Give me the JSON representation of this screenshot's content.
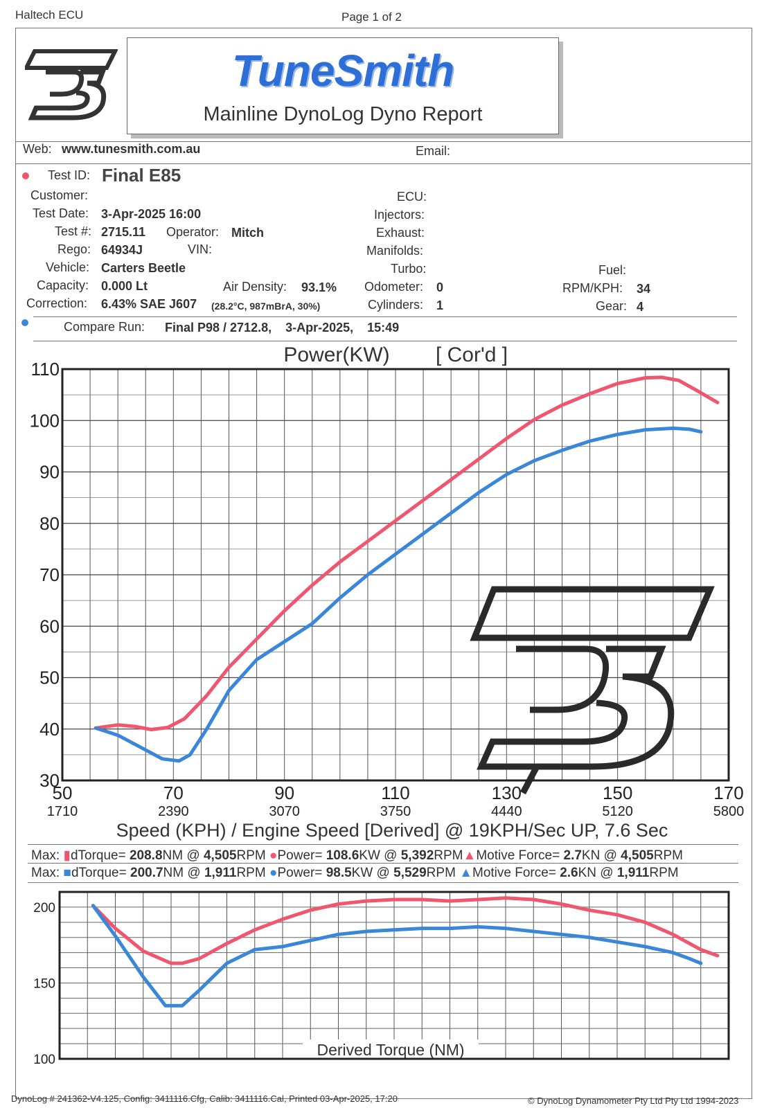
{
  "page": {
    "header_left": "Haltech ECU",
    "header_center": "Page 1 of 2"
  },
  "report": {
    "brand": "TuneSmith",
    "subtitle": "Mainline DynoLog Dyno Report",
    "web_label": "Web:",
    "web_value": "www.tunesmith.com.au",
    "email_label": "Email:",
    "test_id_label": "Test ID:",
    "test_id_value": "Final E85",
    "customer_label": "Customer:",
    "test_date_label": "Test Date:",
    "test_date_value": "3-Apr-2025 16:00",
    "test_num_label": "Test #:",
    "test_num_value": "2715.11",
    "operator_label": "Operator:",
    "operator_value": "Mitch",
    "rego_label": "Rego:",
    "rego_value": "64934J",
    "vin_label": "VIN:",
    "vehicle_label": "Vehicle:",
    "vehicle_value": "Carters Beetle",
    "capacity_label": "Capacity:",
    "capacity_value": "0.000 Lt",
    "air_density_label": "Air Density:",
    "air_density_value": "93.1%",
    "correction_label": "Correction:",
    "correction_value": "6.43% SAE J607",
    "correction_detail": "(28.2°C, 987mBrA, 30%)",
    "ecu_label": "ECU:",
    "injectors_label": "Injectors:",
    "exhaust_label": "Exhaust:",
    "manifolds_label": "Manifolds:",
    "turbo_label": "Turbo:",
    "odometer_label": "Odometer:",
    "odometer_value": "0",
    "cylinders_label": "Cylinders:",
    "cylinders_value": "1",
    "fuel_label": "Fuel:",
    "rpm_kph_label": "RPM/KPH:",
    "rpm_kph_value": "34",
    "gear_label": "Gear:",
    "gear_value": "4",
    "compare_label": "Compare Run:",
    "compare_value": "Final P98 / 2712.8,    3-Apr-2025,    15:49",
    "colors": {
      "test_run": "#f0566e",
      "compare_run": "#3a86d8"
    }
  },
  "max_lines": {
    "run1": {
      "prefix": "Max:",
      "torque_label": "dTorque=",
      "torque_value": "208.8",
      "torque_unit": "NM @ ",
      "torque_rpm": "4,505",
      "torque_rpm_unit": "RPM",
      "power_label": "Power=",
      "power_value": "108.6",
      "power_unit": "KW @ ",
      "power_rpm": "5,392",
      "power_rpm_unit": "RPM",
      "force_label": "Motive Force=",
      "force_value": "2.7",
      "force_unit": "KN @ ",
      "force_rpm": "4,505",
      "force_rpm_unit": "RPM"
    },
    "run2": {
      "prefix": "Max:",
      "torque_label": "dTorque=",
      "torque_value": "200.7",
      "torque_unit": "NM @ ",
      "torque_rpm": "1,911",
      "torque_rpm_unit": "RPM",
      "power_label": "Power=",
      "power_value": "98.5",
      "power_unit": "KW @ ",
      "power_rpm": "5,529",
      "power_rpm_unit": "RPM",
      "force_label": "Motive Force=",
      "force_value": "2.6",
      "force_unit": "KN @ ",
      "force_rpm": "1,911",
      "force_rpm_unit": "RPM"
    }
  },
  "footer": {
    "left": "DynoLog # 241362-V4.125, Config: 3411116.Cfg, Calib: 3411116.Cal, Printed 03-Apr-2025, 17:20",
    "right": "© DynoLog Dynamometer Pty Ltd Pty Ltd 1994-2023"
  },
  "chart_data": [
    {
      "type": "line",
      "title": "Power(KW)",
      "title_suffix": "[ Cor'd ]",
      "xlabel": "Speed (KPH) / Engine Speed [Derived] @ 19KPH/Sec UP, 7.6 Sec",
      "xlim": [
        50,
        170
      ],
      "ylim": [
        30,
        110
      ],
      "x_ticks": [
        {
          "v": 50,
          "label": "50",
          "rpm": "1710"
        },
        {
          "v": 70,
          "label": "70",
          "rpm": "2390"
        },
        {
          "v": 90,
          "label": "90",
          "rpm": "3070"
        },
        {
          "v": 110,
          "label": "110",
          "rpm": "3750"
        },
        {
          "v": 130,
          "label": "130",
          "rpm": "4440"
        },
        {
          "v": 150,
          "label": "150",
          "rpm": "5120"
        },
        {
          "v": 170,
          "label": "170",
          "rpm": "5800"
        }
      ],
      "y_ticks": [
        "30",
        "40",
        "50",
        "60",
        "70",
        "80",
        "90",
        "100",
        "110"
      ],
      "grid": true,
      "series": [
        {
          "color": "#f0566e",
          "x": [
            56,
            60,
            63,
            66,
            69,
            72,
            76,
            80,
            85,
            90,
            95,
            100,
            105,
            110,
            115,
            120,
            125,
            130,
            135,
            140,
            145,
            150,
            155,
            158,
            161,
            164,
            168
          ],
          "y": [
            40.2,
            40.8,
            40.5,
            39.9,
            40.3,
            42,
            46.5,
            52,
            57.5,
            63,
            68,
            72.5,
            76.5,
            80.5,
            84.5,
            88.5,
            92.5,
            96.5,
            100.2,
            103,
            105.2,
            107.2,
            108.3,
            108.4,
            107.8,
            106,
            103.5
          ]
        },
        {
          "color": "#3a86d8",
          "x": [
            56,
            60,
            64,
            68,
            71,
            73,
            76,
            80,
            85,
            90,
            95,
            100,
            105,
            110,
            115,
            120,
            125,
            130,
            135,
            140,
            145,
            150,
            155,
            160,
            163,
            165
          ],
          "y": [
            40.2,
            38.8,
            36.5,
            34.2,
            33.8,
            35,
            40,
            47.5,
            53.5,
            57,
            60.5,
            65.5,
            70,
            74,
            78,
            82,
            86,
            89.5,
            92.2,
            94.2,
            96,
            97.3,
            98.2,
            98.5,
            98.3,
            97.8
          ]
        }
      ]
    },
    {
      "type": "line",
      "title": "Derived Torque (NM)",
      "xlim": [
        50,
        170
      ],
      "ylim": [
        100,
        210
      ],
      "y_ticks": [
        {
          "v": 100,
          "label": "100"
        },
        {
          "v": 150,
          "label": "150"
        },
        {
          "v": 200,
          "label": "200"
        }
      ],
      "grid": true,
      "series": [
        {
          "color": "#f0566e",
          "x": [
            56,
            60,
            65,
            70,
            72,
            75,
            80,
            85,
            90,
            95,
            100,
            105,
            110,
            115,
            120,
            125,
            130,
            135,
            140,
            145,
            150,
            155,
            160,
            165,
            168
          ],
          "y": [
            201,
            186,
            171,
            163,
            163,
            166,
            176,
            185,
            192,
            198,
            202,
            204,
            205,
            205,
            204,
            205,
            206,
            205,
            202,
            198,
            195,
            190,
            182,
            172,
            168
          ]
        },
        {
          "color": "#3a86d8",
          "x": [
            56,
            60,
            65,
            69,
            72,
            75,
            80,
            85,
            90,
            95,
            100,
            105,
            110,
            115,
            120,
            125,
            130,
            135,
            140,
            145,
            150,
            155,
            160,
            163,
            165
          ],
          "y": [
            201,
            181,
            154,
            135,
            135,
            145,
            163,
            172,
            174,
            178,
            182,
            184,
            185,
            186,
            186,
            187,
            186,
            184,
            182,
            180,
            177,
            174,
            170,
            166,
            163
          ]
        }
      ]
    }
  ]
}
